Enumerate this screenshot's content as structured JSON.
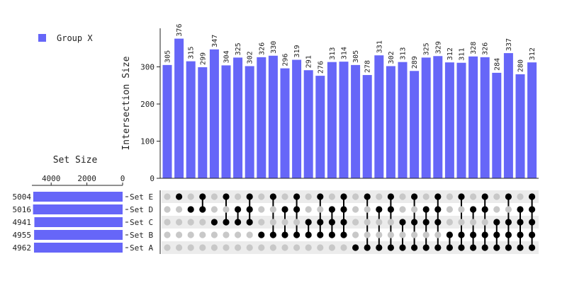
{
  "chart_data": {
    "type": "upset",
    "legend": {
      "label": "Group X",
      "color": "#6666f8",
      "placement": "top-left"
    },
    "intersection_axis": {
      "label": "Intersection Size",
      "ylim": [
        0,
        400
      ],
      "ticks": [
        0,
        100,
        200,
        300
      ]
    },
    "set_size_axis": {
      "label": "Set Size",
      "xlim": [
        0,
        5000
      ],
      "ticks": [
        4000,
        2000,
        0
      ]
    },
    "sets": [
      {
        "name": "Set E",
        "size": 5004
      },
      {
        "name": "Set D",
        "size": 5016
      },
      {
        "name": "Set C",
        "size": 4941
      },
      {
        "name": "Set B",
        "size": 4955
      },
      {
        "name": "Set A",
        "size": 4962
      }
    ],
    "intersections": [
      {
        "sets": [],
        "value": 305
      },
      {
        "sets": [
          "Set E"
        ],
        "value": 376
      },
      {
        "sets": [
          "Set D"
        ],
        "value": 315
      },
      {
        "sets": [
          "Set E",
          "Set D"
        ],
        "value": 299
      },
      {
        "sets": [
          "Set C"
        ],
        "value": 347
      },
      {
        "sets": [
          "Set E",
          "Set C"
        ],
        "value": 304
      },
      {
        "sets": [
          "Set D",
          "Set C"
        ],
        "value": 325
      },
      {
        "sets": [
          "Set E",
          "Set D",
          "Set C"
        ],
        "value": 302
      },
      {
        "sets": [
          "Set B"
        ],
        "value": 326
      },
      {
        "sets": [
          "Set E",
          "Set B"
        ],
        "value": 330
      },
      {
        "sets": [
          "Set D",
          "Set B"
        ],
        "value": 296
      },
      {
        "sets": [
          "Set E",
          "Set D",
          "Set B"
        ],
        "value": 319
      },
      {
        "sets": [
          "Set C",
          "Set B"
        ],
        "value": 291
      },
      {
        "sets": [
          "Set E",
          "Set C",
          "Set B"
        ],
        "value": 276
      },
      {
        "sets": [
          "Set D",
          "Set C",
          "Set B"
        ],
        "value": 313
      },
      {
        "sets": [
          "Set E",
          "Set D",
          "Set C",
          "Set B"
        ],
        "value": 314
      },
      {
        "sets": [
          "Set A"
        ],
        "value": 305
      },
      {
        "sets": [
          "Set E",
          "Set A"
        ],
        "value": 278
      },
      {
        "sets": [
          "Set D",
          "Set A"
        ],
        "value": 331
      },
      {
        "sets": [
          "Set E",
          "Set D",
          "Set A"
        ],
        "value": 302
      },
      {
        "sets": [
          "Set C",
          "Set A"
        ],
        "value": 313
      },
      {
        "sets": [
          "Set E",
          "Set C",
          "Set A"
        ],
        "value": 289
      },
      {
        "sets": [
          "Set D",
          "Set C",
          "Set A"
        ],
        "value": 325
      },
      {
        "sets": [
          "Set E",
          "Set D",
          "Set C",
          "Set A"
        ],
        "value": 329
      },
      {
        "sets": [
          "Set B",
          "Set A"
        ],
        "value": 312
      },
      {
        "sets": [
          "Set E",
          "Set B",
          "Set A"
        ],
        "value": 311
      },
      {
        "sets": [
          "Set D",
          "Set B",
          "Set A"
        ],
        "value": 328
      },
      {
        "sets": [
          "Set E",
          "Set D",
          "Set B",
          "Set A"
        ],
        "value": 326
      },
      {
        "sets": [
          "Set C",
          "Set B",
          "Set A"
        ],
        "value": 284
      },
      {
        "sets": [
          "Set E",
          "Set C",
          "Set B",
          "Set A"
        ],
        "value": 337
      },
      {
        "sets": [
          "Set D",
          "Set C",
          "Set B",
          "Set A"
        ],
        "value": 280
      },
      {
        "sets": [
          "Set E",
          "Set D",
          "Set C",
          "Set B",
          "Set A"
        ],
        "value": 312
      }
    ],
    "colors": {
      "bar": "#6666f8",
      "dot_active": "#000000",
      "dot_inactive": "#c8c8c8",
      "row_shade": "#ececec"
    }
  }
}
